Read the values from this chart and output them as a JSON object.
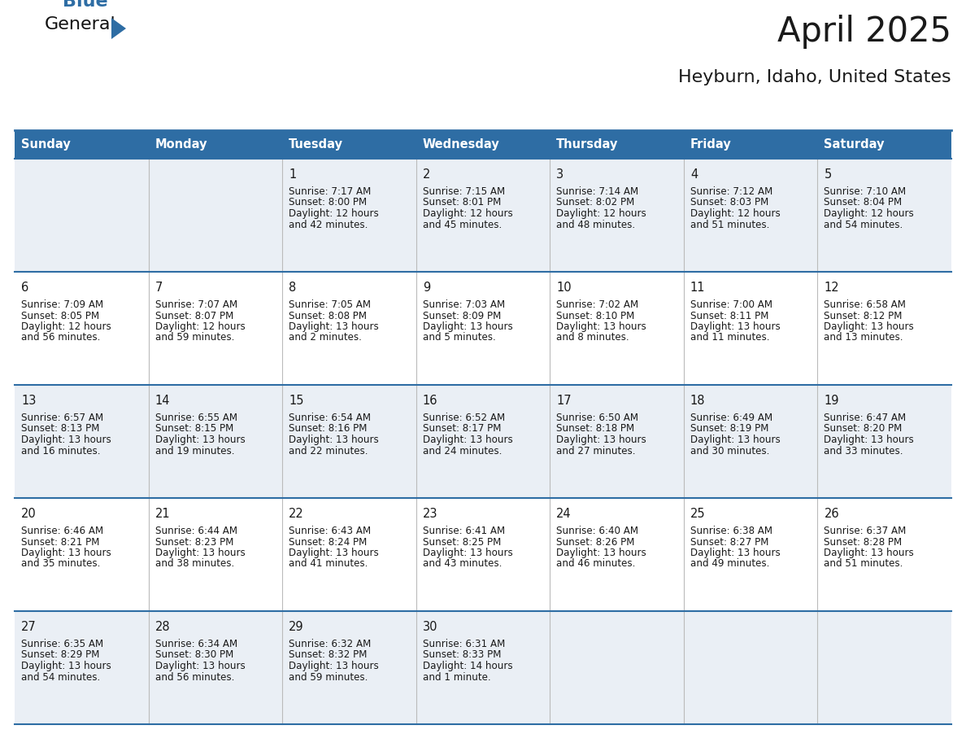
{
  "title": "April 2025",
  "subtitle": "Heyburn, Idaho, United States",
  "header_bg": "#2E6DA4",
  "header_text_color": "#FFFFFF",
  "cell_bg_even": "#EAEFF5",
  "cell_bg_odd": "#FFFFFF",
  "row_line_color": "#2E6DA4",
  "day_names": [
    "Sunday",
    "Monday",
    "Tuesday",
    "Wednesday",
    "Thursday",
    "Friday",
    "Saturday"
  ],
  "days": [
    {
      "day": 1,
      "col": 2,
      "row": 0,
      "sunrise": "7:17 AM",
      "sunset": "8:00 PM",
      "daylight": "12 hours and 42 minutes."
    },
    {
      "day": 2,
      "col": 3,
      "row": 0,
      "sunrise": "7:15 AM",
      "sunset": "8:01 PM",
      "daylight": "12 hours and 45 minutes."
    },
    {
      "day": 3,
      "col": 4,
      "row": 0,
      "sunrise": "7:14 AM",
      "sunset": "8:02 PM",
      "daylight": "12 hours and 48 minutes."
    },
    {
      "day": 4,
      "col": 5,
      "row": 0,
      "sunrise": "7:12 AM",
      "sunset": "8:03 PM",
      "daylight": "12 hours and 51 minutes."
    },
    {
      "day": 5,
      "col": 6,
      "row": 0,
      "sunrise": "7:10 AM",
      "sunset": "8:04 PM",
      "daylight": "12 hours and 54 minutes."
    },
    {
      "day": 6,
      "col": 0,
      "row": 1,
      "sunrise": "7:09 AM",
      "sunset": "8:05 PM",
      "daylight": "12 hours and 56 minutes."
    },
    {
      "day": 7,
      "col": 1,
      "row": 1,
      "sunrise": "7:07 AM",
      "sunset": "8:07 PM",
      "daylight": "12 hours and 59 minutes."
    },
    {
      "day": 8,
      "col": 2,
      "row": 1,
      "sunrise": "7:05 AM",
      "sunset": "8:08 PM",
      "daylight": "13 hours and 2 minutes."
    },
    {
      "day": 9,
      "col": 3,
      "row": 1,
      "sunrise": "7:03 AM",
      "sunset": "8:09 PM",
      "daylight": "13 hours and 5 minutes."
    },
    {
      "day": 10,
      "col": 4,
      "row": 1,
      "sunrise": "7:02 AM",
      "sunset": "8:10 PM",
      "daylight": "13 hours and 8 minutes."
    },
    {
      "day": 11,
      "col": 5,
      "row": 1,
      "sunrise": "7:00 AM",
      "sunset": "8:11 PM",
      "daylight": "13 hours and 11 minutes."
    },
    {
      "day": 12,
      "col": 6,
      "row": 1,
      "sunrise": "6:58 AM",
      "sunset": "8:12 PM",
      "daylight": "13 hours and 13 minutes."
    },
    {
      "day": 13,
      "col": 0,
      "row": 2,
      "sunrise": "6:57 AM",
      "sunset": "8:13 PM",
      "daylight": "13 hours and 16 minutes."
    },
    {
      "day": 14,
      "col": 1,
      "row": 2,
      "sunrise": "6:55 AM",
      "sunset": "8:15 PM",
      "daylight": "13 hours and 19 minutes."
    },
    {
      "day": 15,
      "col": 2,
      "row": 2,
      "sunrise": "6:54 AM",
      "sunset": "8:16 PM",
      "daylight": "13 hours and 22 minutes."
    },
    {
      "day": 16,
      "col": 3,
      "row": 2,
      "sunrise": "6:52 AM",
      "sunset": "8:17 PM",
      "daylight": "13 hours and 24 minutes."
    },
    {
      "day": 17,
      "col": 4,
      "row": 2,
      "sunrise": "6:50 AM",
      "sunset": "8:18 PM",
      "daylight": "13 hours and 27 minutes."
    },
    {
      "day": 18,
      "col": 5,
      "row": 2,
      "sunrise": "6:49 AM",
      "sunset": "8:19 PM",
      "daylight": "13 hours and 30 minutes."
    },
    {
      "day": 19,
      "col": 6,
      "row": 2,
      "sunrise": "6:47 AM",
      "sunset": "8:20 PM",
      "daylight": "13 hours and 33 minutes."
    },
    {
      "day": 20,
      "col": 0,
      "row": 3,
      "sunrise": "6:46 AM",
      "sunset": "8:21 PM",
      "daylight": "13 hours and 35 minutes."
    },
    {
      "day": 21,
      "col": 1,
      "row": 3,
      "sunrise": "6:44 AM",
      "sunset": "8:23 PM",
      "daylight": "13 hours and 38 minutes."
    },
    {
      "day": 22,
      "col": 2,
      "row": 3,
      "sunrise": "6:43 AM",
      "sunset": "8:24 PM",
      "daylight": "13 hours and 41 minutes."
    },
    {
      "day": 23,
      "col": 3,
      "row": 3,
      "sunrise": "6:41 AM",
      "sunset": "8:25 PM",
      "daylight": "13 hours and 43 minutes."
    },
    {
      "day": 24,
      "col": 4,
      "row": 3,
      "sunrise": "6:40 AM",
      "sunset": "8:26 PM",
      "daylight": "13 hours and 46 minutes."
    },
    {
      "day": 25,
      "col": 5,
      "row": 3,
      "sunrise": "6:38 AM",
      "sunset": "8:27 PM",
      "daylight": "13 hours and 49 minutes."
    },
    {
      "day": 26,
      "col": 6,
      "row": 3,
      "sunrise": "6:37 AM",
      "sunset": "8:28 PM",
      "daylight": "13 hours and 51 minutes."
    },
    {
      "day": 27,
      "col": 0,
      "row": 4,
      "sunrise": "6:35 AM",
      "sunset": "8:29 PM",
      "daylight": "13 hours and 54 minutes."
    },
    {
      "day": 28,
      "col": 1,
      "row": 4,
      "sunrise": "6:34 AM",
      "sunset": "8:30 PM",
      "daylight": "13 hours and 56 minutes."
    },
    {
      "day": 29,
      "col": 2,
      "row": 4,
      "sunrise": "6:32 AM",
      "sunset": "8:32 PM",
      "daylight": "13 hours and 59 minutes."
    },
    {
      "day": 30,
      "col": 3,
      "row": 4,
      "sunrise": "6:31 AM",
      "sunset": "8:33 PM",
      "daylight": "14 hours and 1 minute."
    }
  ],
  "num_rows": 5,
  "num_cols": 7,
  "logo_text_general": "General",
  "logo_text_blue": "Blue",
  "logo_color_general": "#111111",
  "logo_color_blue": "#2E6DA4",
  "logo_triangle_color": "#2E6DA4",
  "fig_width": 11.88,
  "fig_height": 9.18,
  "dpi": 100
}
